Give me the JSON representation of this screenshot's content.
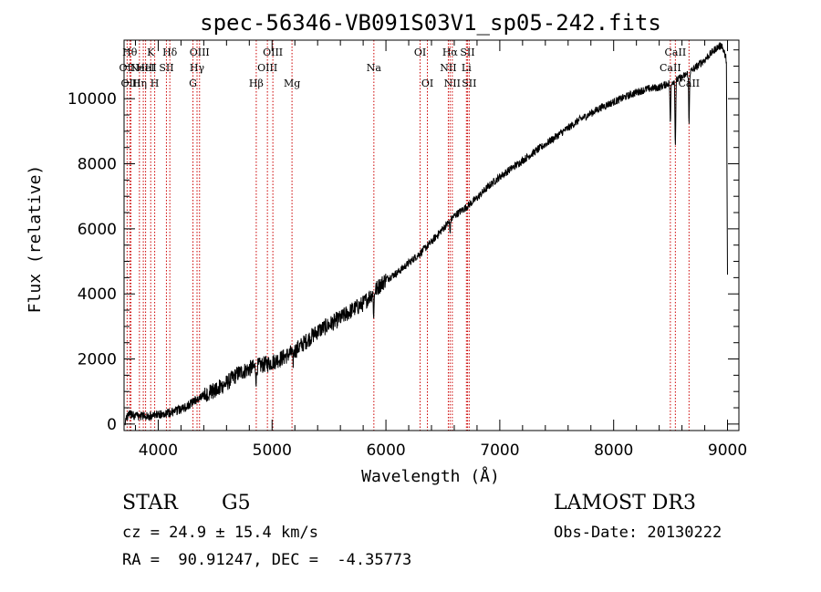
{
  "chart_data": {
    "type": "line",
    "title": "spec-56346-VB091S03V1_sp05-242.fits",
    "xlabel": "Wavelength (Å)",
    "ylabel": "Flux (relative)",
    "xlim": [
      3700,
      9100
    ],
    "ylim": [
      -200,
      11800
    ],
    "xticks": [
      4000,
      5000,
      6000,
      7000,
      8000,
      9000
    ],
    "xtick_labels": [
      "4000",
      "5000",
      "6000",
      "7000",
      "8000",
      "9000"
    ],
    "yticks": [
      0,
      2000,
      4000,
      6000,
      8000,
      10000
    ],
    "ytick_labels": [
      "0",
      "2000",
      "4000",
      "6000",
      "8000",
      "10000"
    ],
    "grid": false,
    "spectrum_knots": [
      [
        3710,
        50
      ],
      [
        3740,
        300
      ],
      [
        3800,
        250
      ],
      [
        3900,
        230
      ],
      [
        4000,
        280
      ],
      [
        4100,
        350
      ],
      [
        4200,
        450
      ],
      [
        4300,
        650
      ],
      [
        4400,
        900
      ],
      [
        4500,
        1050
      ],
      [
        4600,
        1250
      ],
      [
        4700,
        1550
      ],
      [
        4800,
        1700
      ],
      [
        4900,
        1800
      ],
      [
        5000,
        1900
      ],
      [
        5100,
        2050
      ],
      [
        5200,
        2250
      ],
      [
        5300,
        2550
      ],
      [
        5400,
        2850
      ],
      [
        5500,
        3050
      ],
      [
        5600,
        3250
      ],
      [
        5700,
        3500
      ],
      [
        5800,
        3700
      ],
      [
        5900,
        4100
      ],
      [
        6000,
        4450
      ],
      [
        6100,
        4650
      ],
      [
        6200,
        4950
      ],
      [
        6300,
        5250
      ],
      [
        6400,
        5600
      ],
      [
        6500,
        6000
      ],
      [
        6600,
        6400
      ],
      [
        6700,
        6650
      ],
      [
        6800,
        6950
      ],
      [
        6900,
        7300
      ],
      [
        7000,
        7600
      ],
      [
        7100,
        7850
      ],
      [
        7200,
        8100
      ],
      [
        7300,
        8350
      ],
      [
        7400,
        8600
      ],
      [
        7500,
        8850
      ],
      [
        7600,
        9100
      ],
      [
        7700,
        9350
      ],
      [
        7800,
        9550
      ],
      [
        7900,
        9750
      ],
      [
        8000,
        9900
      ],
      [
        8100,
        10050
      ],
      [
        8200,
        10200
      ],
      [
        8300,
        10300
      ],
      [
        8400,
        10350
      ],
      [
        8500,
        10500
      ],
      [
        8600,
        10650
      ],
      [
        8700,
        10900
      ],
      [
        8800,
        11200
      ],
      [
        8900,
        11550
      ],
      [
        8950,
        11650
      ],
      [
        8990,
        11200
      ],
      [
        9000,
        4500
      ]
    ],
    "absorption_features": [
      {
        "wavelength": 4861,
        "depth": 450
      },
      {
        "wavelength": 5183,
        "depth": 350
      },
      {
        "wavelength": 5893,
        "depth": 700
      },
      {
        "wavelength": 6563,
        "depth": 350
      },
      {
        "wavelength": 8498,
        "depth": 1300
      },
      {
        "wavelength": 8542,
        "depth": 2000
      },
      {
        "wavelength": 8662,
        "depth": 1600
      }
    ],
    "spectral_lines": [
      {
        "wavelength": 3727,
        "label": "OII",
        "row": 1
      },
      {
        "wavelength": 3750,
        "label": "Hθ",
        "row": 0
      },
      {
        "wavelength": 3760,
        "label": "OIII",
        "row": 2
      },
      {
        "wavelength": 3835,
        "label": "Hη",
        "row": 2
      },
      {
        "wavelength": 3869,
        "label": "NeIII",
        "row": 1
      },
      {
        "wavelength": 3889,
        "label": "HeI",
        "row": 1
      },
      {
        "wavelength": 3934,
        "label": "K",
        "row": 0
      },
      {
        "wavelength": 3969,
        "label": "H",
        "row": 2
      },
      {
        "wavelength": 4072,
        "label": "SII",
        "row": 1
      },
      {
        "wavelength": 4102,
        "label": "Hδ",
        "row": 0
      },
      {
        "wavelength": 4305,
        "label": "G",
        "row": 2
      },
      {
        "wavelength": 4341,
        "label": "Hγ",
        "row": 1
      },
      {
        "wavelength": 4363,
        "label": "OIII",
        "row": 0
      },
      {
        "wavelength": 4861,
        "label": "Hβ",
        "row": 2
      },
      {
        "wavelength": 4959,
        "label": "OIII",
        "row": 1
      },
      {
        "wavelength": 5007,
        "label": "OIII",
        "row": 0
      },
      {
        "wavelength": 5175,
        "label": "Mg",
        "row": 2
      },
      {
        "wavelength": 5894,
        "label": "Na",
        "row": 1
      },
      {
        "wavelength": 6300,
        "label": "OI",
        "row": 0
      },
      {
        "wavelength": 6364,
        "label": "OI",
        "row": 2
      },
      {
        "wavelength": 6548,
        "label": "NII",
        "row": 1
      },
      {
        "wavelength": 6563,
        "label": "Hα",
        "row": 0
      },
      {
        "wavelength": 6583,
        "label": "NII",
        "row": 2
      },
      {
        "wavelength": 6707,
        "label": "Li",
        "row": 1
      },
      {
        "wavelength": 6716,
        "label": "SII",
        "row": 0
      },
      {
        "wavelength": 6731,
        "label": "SII",
        "row": 2
      },
      {
        "wavelength": 8498,
        "label": "CaII",
        "row": 1
      },
      {
        "wavelength": 8542,
        "label": "CaII",
        "row": 0
      },
      {
        "wavelength": 8662,
        "label": "CaII",
        "row": 2
      }
    ]
  },
  "info": {
    "object_class": "STAR",
    "subclass": "G5",
    "survey": "LAMOST DR3",
    "redshift_line": "cz = 24.9 ± 15.4 km/s",
    "obs_date_line": "Obs-Date: 20130222",
    "coords_line": "RA =  90.91247, DEC =  -4.35773"
  },
  "colors": {
    "spectrum": "#000000",
    "line_markers": "#cc0000",
    "axes": "#000000"
  }
}
